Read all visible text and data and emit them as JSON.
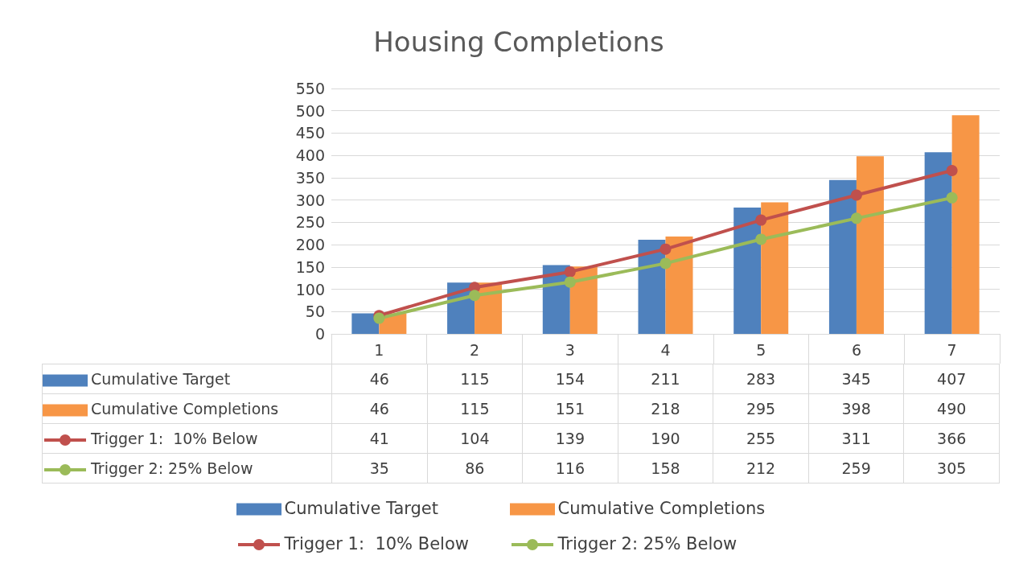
{
  "chart_data": {
    "type": "bar",
    "title": "Housing Completions",
    "categories": [
      "1",
      "2",
      "3",
      "4",
      "5",
      "6",
      "7"
    ],
    "series": [
      {
        "name": "Cumulative Target",
        "type": "bar",
        "color": "#4f81bd",
        "values": [
          46,
          115,
          154,
          211,
          283,
          345,
          407
        ]
      },
      {
        "name": "Cumulative Completions",
        "type": "bar",
        "color": "#f79646",
        "values": [
          46,
          115,
          151,
          218,
          295,
          398,
          490
        ]
      },
      {
        "name": "Trigger 1:  10% Below",
        "type": "line",
        "color": "#c0504d",
        "values": [
          41,
          104,
          139,
          190,
          255,
          311,
          366
        ]
      },
      {
        "name": "Trigger 2: 25% Below",
        "type": "line",
        "color": "#9bbb59",
        "values": [
          35,
          86,
          116,
          158,
          212,
          259,
          305
        ]
      }
    ],
    "ylim": [
      0,
      550
    ],
    "yticks": [
      0,
      50,
      100,
      150,
      200,
      250,
      300,
      350,
      400,
      450,
      500,
      550
    ],
    "grid": "y",
    "legend": "bottom",
    "marker": "circle",
    "data_labels": true
  }
}
